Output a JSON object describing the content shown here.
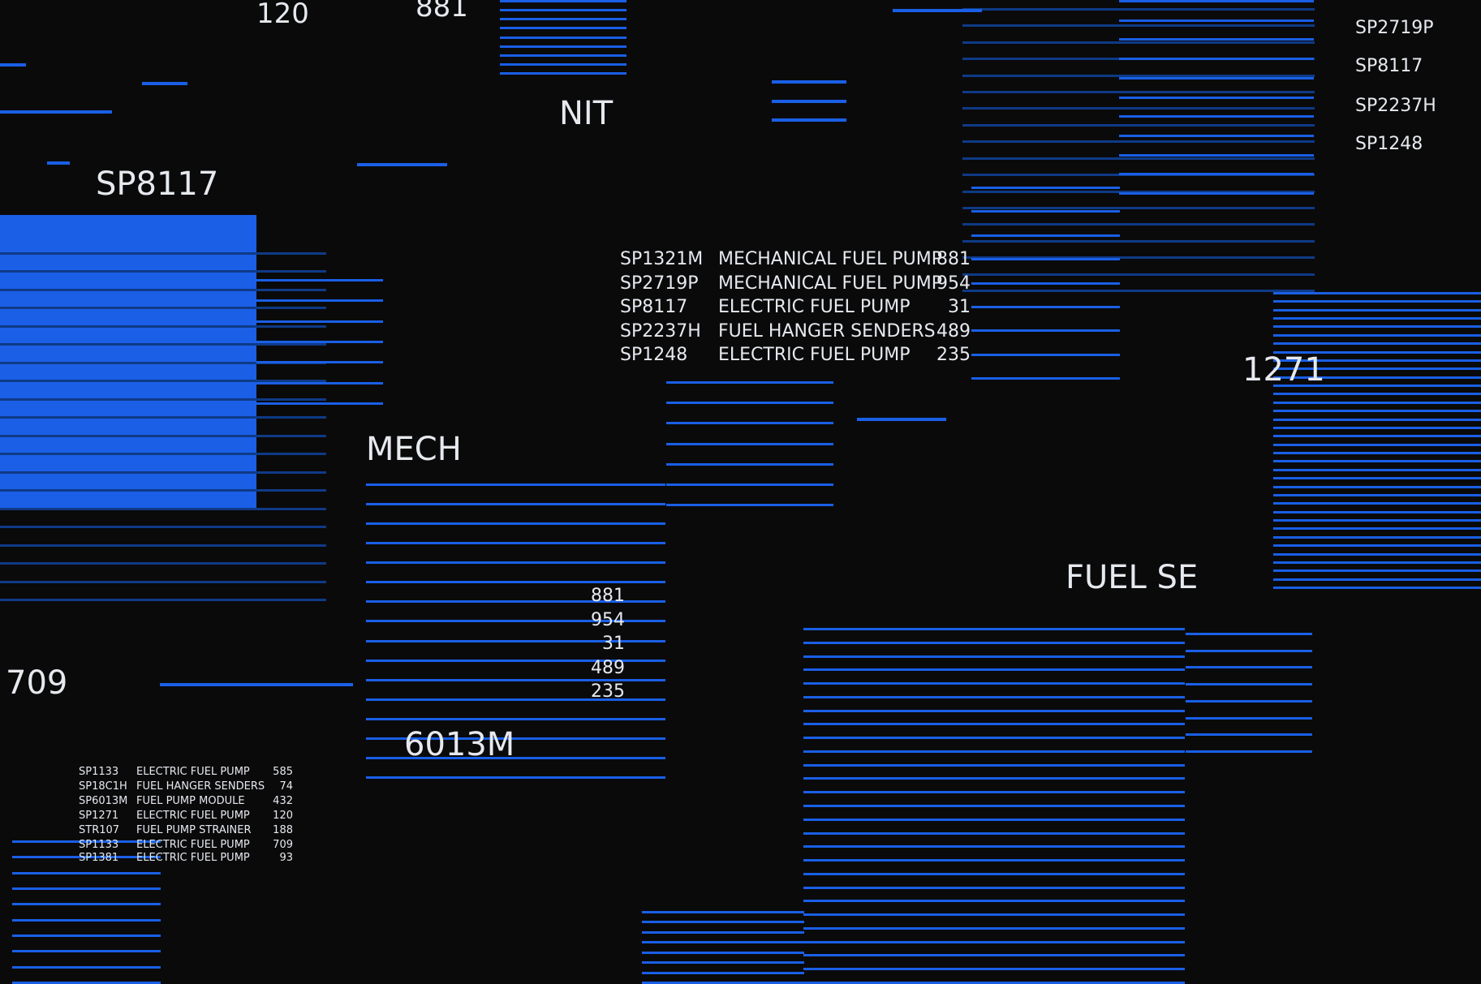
{
  "labels": {
    "n120": "120",
    "n881": "881",
    "nit": "NIT",
    "sp8117": "SP8117",
    "mech": "MECH",
    "n709": "709",
    "n6013m": "6013M",
    "fuel_se": "FUEL SE",
    "n1271": "1271"
  },
  "top_right_codes": [
    "SP2719P",
    "SP8117",
    "SP2237H",
    "SP1248"
  ],
  "main_table": [
    {
      "code": "SP1321M",
      "desc": "MECHANICAL FUEL PUMP",
      "qty": "881"
    },
    {
      "code": "SP2719P",
      "desc": "MECHANICAL FUEL PUMP",
      "qty": "954"
    },
    {
      "code": "SP8117",
      "desc": "ELECTRIC FUEL PUMP",
      "qty": "31"
    },
    {
      "code": "SP2237H",
      "desc": "FUEL HANGER SENDERS",
      "qty": "489"
    },
    {
      "code": "SP1248",
      "desc": "ELECTRIC FUEL PUMP",
      "qty": "235"
    }
  ],
  "number_column": [
    "881",
    "954",
    "31",
    "489",
    "235"
  ],
  "small_table": [
    {
      "code": "SP1133",
      "desc": "ELECTRIC FUEL PUMP",
      "qty": "585"
    },
    {
      "code": "SP18C1H",
      "desc": "FUEL HANGER SENDERS",
      "qty": "74"
    },
    {
      "code": "SP6013M",
      "desc": "FUEL PUMP MODULE",
      "qty": "432"
    },
    {
      "code": "SP1271",
      "desc": "ELECTRIC FUEL PUMP",
      "qty": "120"
    },
    {
      "code": "STR107",
      "desc": "FUEL PUMP STRAINER",
      "qty": "188"
    },
    {
      "code": "SP1133",
      "desc": "ELECTRIC FUEL PUMP",
      "qty": "709"
    },
    {
      "code": "SP1381",
      "desc": "ELECTRIC FUEL PUMP",
      "qty": "93"
    }
  ],
  "colors": {
    "background": "#0a0a0b",
    "accent": "#1a5fe6",
    "accent_dim": "#0f3a86",
    "text": "#e6e9ee"
  }
}
